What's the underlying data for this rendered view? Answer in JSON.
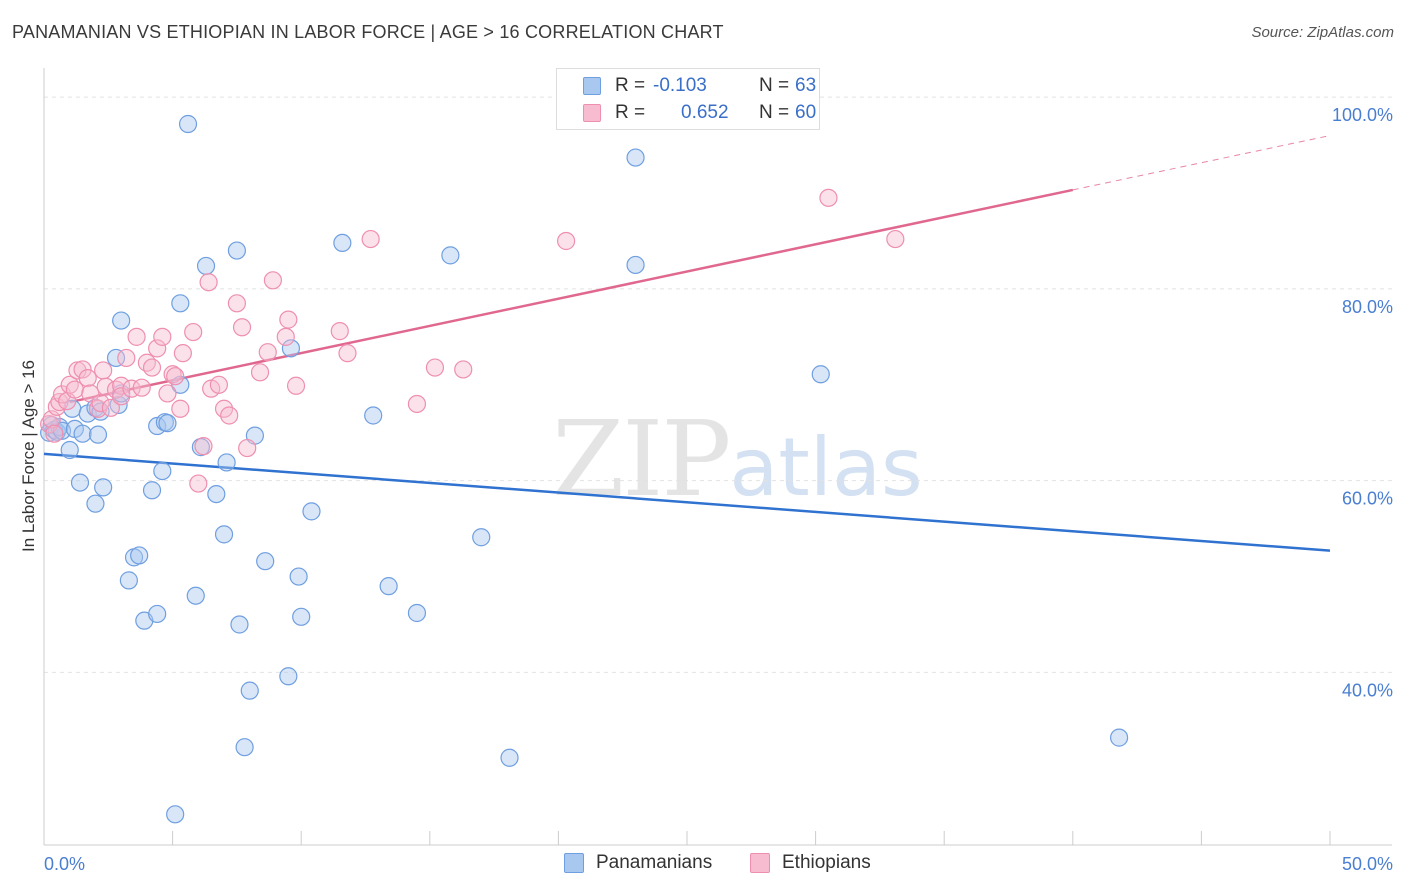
{
  "header": {
    "title": "PANAMANIAN VS ETHIOPIAN IN LABOR FORCE | AGE > 16 CORRELATION CHART",
    "source": "Source: ZipAtlas.com"
  },
  "watermark": {
    "zip": "ZIP",
    "atlas": "atlas"
  },
  "legend": {
    "rows": [
      {
        "r_label": "R = ",
        "r_value": "-0.103",
        "n_label": "N = ",
        "n_value": "63",
        "color": "#a9c8f0",
        "border": "#6f9fe0"
      },
      {
        "r_label": "R = ",
        "r_value": "0.652",
        "n_label": "N = ",
        "n_value": "60",
        "color": "#f7bcd0",
        "border": "#ee8fb0"
      }
    ],
    "bottom": [
      {
        "label": "Panamanians",
        "color": "#a9c8f0",
        "border": "#6f9fe0"
      },
      {
        "label": "Ethiopians",
        "color": "#f7bcd0",
        "border": "#ee8fb0"
      }
    ]
  },
  "chart_data": {
    "type": "scatter",
    "title": "PANAMANIAN VS ETHIOPIAN IN LABOR FORCE | AGE > 16 CORRELATION CHART",
    "xlabel": "",
    "ylabel": "In Labor Force | Age > 16",
    "xlim": [
      0,
      50
    ],
    "ylim": [
      22,
      102
    ],
    "x_tick_labels": [
      "0.0%",
      "50.0%"
    ],
    "y_ticks": [
      40,
      60,
      80,
      100
    ],
    "y_tick_labels": [
      "40.0%",
      "60.0%",
      "80.0%",
      "100.0%"
    ],
    "grid": true,
    "legend_position": "top-center",
    "series": [
      {
        "name": "Panamanians",
        "color": "#6f9fe0",
        "fill": "#a9c8f0",
        "line_color": "#2f72d0",
        "trend": {
          "x": [
            0,
            50
          ],
          "y": [
            62.8,
            52.7
          ],
          "dashed_from": null
        },
        "points": [
          [
            0.2,
            65.0
          ],
          [
            0.3,
            65.8
          ],
          [
            0.4,
            65.3
          ],
          [
            0.5,
            65.1
          ],
          [
            0.6,
            65.6
          ],
          [
            0.7,
            65.2
          ],
          [
            1.0,
            63.2
          ],
          [
            1.2,
            65.4
          ],
          [
            1.1,
            67.5
          ],
          [
            1.5,
            64.9
          ],
          [
            1.7,
            67.0
          ],
          [
            1.4,
            59.8
          ],
          [
            2.0,
            57.6
          ],
          [
            2.3,
            59.3
          ],
          [
            2.1,
            64.8
          ],
          [
            2.0,
            67.6
          ],
          [
            2.9,
            67.9
          ],
          [
            3.0,
            69.1
          ],
          [
            2.8,
            72.8
          ],
          [
            3.0,
            76.7
          ],
          [
            2.2,
            67.2
          ],
          [
            4.4,
            65.7
          ],
          [
            4.7,
            66.1
          ],
          [
            4.2,
            59.0
          ],
          [
            3.5,
            52.0
          ],
          [
            3.7,
            52.2
          ],
          [
            3.3,
            49.6
          ],
          [
            3.9,
            45.4
          ],
          [
            4.4,
            46.1
          ],
          [
            4.6,
            61.0
          ],
          [
            5.3,
            78.5
          ],
          [
            5.3,
            70.0
          ],
          [
            5.6,
            97.2
          ],
          [
            6.1,
            63.5
          ],
          [
            6.3,
            82.4
          ],
          [
            6.7,
            58.6
          ],
          [
            7.0,
            54.4
          ],
          [
            7.1,
            61.9
          ],
          [
            7.5,
            84.0
          ],
          [
            7.6,
            45.0
          ],
          [
            7.8,
            32.2
          ],
          [
            8.0,
            38.1
          ],
          [
            8.2,
            64.7
          ],
          [
            8.6,
            51.6
          ],
          [
            9.5,
            39.6
          ],
          [
            9.6,
            73.8
          ],
          [
            9.9,
            50.0
          ],
          [
            10.0,
            45.8
          ],
          [
            10.4,
            56.8
          ],
          [
            11.6,
            84.8
          ],
          [
            12.8,
            66.8
          ],
          [
            13.4,
            49.0
          ],
          [
            14.5,
            46.2
          ],
          [
            15.8,
            83.5
          ],
          [
            17.0,
            54.1
          ],
          [
            18.1,
            31.1
          ],
          [
            23.0,
            93.7
          ],
          [
            23.0,
            82.5
          ],
          [
            30.2,
            71.1
          ],
          [
            41.8,
            33.2
          ],
          [
            5.1,
            25.2
          ],
          [
            5.9,
            48.0
          ],
          [
            4.8,
            66.0
          ]
        ]
      },
      {
        "name": "Ethiopians",
        "color": "#ee8fb0",
        "fill": "#f7bcd0",
        "line_color": "#e0688f",
        "trend": {
          "x": [
            1,
            50
          ],
          "y": [
            68.2,
            96.0
          ],
          "dashed_from": 40
        },
        "points": [
          [
            0.2,
            65.9
          ],
          [
            0.3,
            66.4
          ],
          [
            0.5,
            67.7
          ],
          [
            0.6,
            68.2
          ],
          [
            0.7,
            69.0
          ],
          [
            0.9,
            68.3
          ],
          [
            1.0,
            70.0
          ],
          [
            1.2,
            69.5
          ],
          [
            1.3,
            71.5
          ],
          [
            1.5,
            71.6
          ],
          [
            1.7,
            70.7
          ],
          [
            1.8,
            69.1
          ],
          [
            2.1,
            67.5
          ],
          [
            2.2,
            68.1
          ],
          [
            2.3,
            71.5
          ],
          [
            2.4,
            69.8
          ],
          [
            2.6,
            67.6
          ],
          [
            2.8,
            69.5
          ],
          [
            3.0,
            69.9
          ],
          [
            3.0,
            68.8
          ],
          [
            3.2,
            72.8
          ],
          [
            3.4,
            69.6
          ],
          [
            3.6,
            75.0
          ],
          [
            3.8,
            69.7
          ],
          [
            4.0,
            72.3
          ],
          [
            4.2,
            71.8
          ],
          [
            4.4,
            73.8
          ],
          [
            4.6,
            75.0
          ],
          [
            4.8,
            69.1
          ],
          [
            5.0,
            71.1
          ],
          [
            5.1,
            70.9
          ],
          [
            5.3,
            67.5
          ],
          [
            5.4,
            73.3
          ],
          [
            5.8,
            75.5
          ],
          [
            6.0,
            59.7
          ],
          [
            6.2,
            63.6
          ],
          [
            6.4,
            80.7
          ],
          [
            6.5,
            69.6
          ],
          [
            6.8,
            70.0
          ],
          [
            7.0,
            67.5
          ],
          [
            7.2,
            66.8
          ],
          [
            7.5,
            78.5
          ],
          [
            7.7,
            76.0
          ],
          [
            7.9,
            63.4
          ],
          [
            8.4,
            71.3
          ],
          [
            8.7,
            73.4
          ],
          [
            8.9,
            80.9
          ],
          [
            9.4,
            75.0
          ],
          [
            9.5,
            76.8
          ],
          [
            9.8,
            69.9
          ],
          [
            11.5,
            75.6
          ],
          [
            11.8,
            73.3
          ],
          [
            12.7,
            85.2
          ],
          [
            14.5,
            68.0
          ],
          [
            15.2,
            71.8
          ],
          [
            16.3,
            71.6
          ],
          [
            20.3,
            85.0
          ],
          [
            30.5,
            89.5
          ],
          [
            33.1,
            85.2
          ],
          [
            0.4,
            64.9
          ]
        ]
      }
    ]
  }
}
